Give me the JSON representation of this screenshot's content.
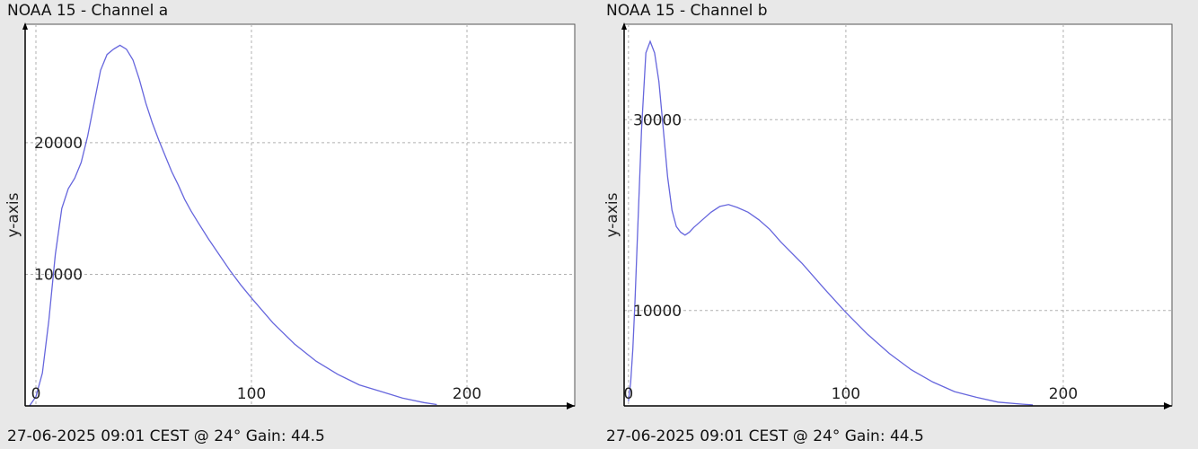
{
  "chart_data": [
    {
      "type": "line",
      "title": "NOAA 15 - Channel a",
      "footer": "27-06-2025 09:01 CEST @ 24° Gain: 44.5",
      "ylabel": "y-axis",
      "xlabel": "",
      "xlim": [
        -5,
        250
      ],
      "ylim": [
        0,
        29000
      ],
      "grid": true,
      "xticks": [
        0,
        100,
        200
      ],
      "yticks": [
        10000,
        20000
      ],
      "line_color": "#6666dd",
      "series": [
        {
          "x": [
            -3,
            0,
            3,
            6,
            9,
            12,
            15,
            18,
            21,
            24,
            27,
            30,
            33,
            36,
            39,
            42,
            45,
            48,
            51,
            54,
            57,
            60,
            63,
            66,
            69,
            72,
            75,
            80,
            85,
            90,
            95,
            100,
            110,
            120,
            130,
            140,
            150,
            160,
            170,
            180,
            186
          ],
          "values": [
            0,
            700,
            2500,
            6500,
            11500,
            15000,
            16500,
            17300,
            18500,
            20500,
            23000,
            25500,
            26700,
            27100,
            27400,
            27100,
            26300,
            24800,
            23000,
            21500,
            20200,
            19000,
            17800,
            16800,
            15700,
            14800,
            14000,
            12700,
            11500,
            10300,
            9200,
            8200,
            6300,
            4700,
            3400,
            2400,
            1600,
            1100,
            600,
            250,
            100
          ]
        }
      ]
    },
    {
      "type": "line",
      "title": "NOAA 15 - Channel b",
      "footer": "27-06-2025 09:01 CEST @ 24° Gain: 44.5",
      "ylabel": "y-axis",
      "xlabel": "",
      "xlim": [
        -2,
        250
      ],
      "ylim": [
        0,
        40000
      ],
      "grid": true,
      "xticks": [
        0,
        100,
        200
      ],
      "yticks": [
        10000,
        30000
      ],
      "line_color": "#6666dd",
      "series": [
        {
          "x": [
            0,
            1,
            2,
            3,
            4,
            6,
            8,
            10,
            12,
            14,
            16,
            18,
            20,
            22,
            24,
            26,
            28,
            30,
            34,
            38,
            42,
            46,
            50,
            55,
            60,
            65,
            70,
            80,
            90,
            100,
            110,
            120,
            130,
            140,
            150,
            160,
            170,
            180,
            186
          ],
          "values": [
            500,
            2500,
            6000,
            11000,
            17000,
            29000,
            37000,
            38200,
            37000,
            34000,
            29000,
            24000,
            20500,
            18800,
            18200,
            17900,
            18200,
            18700,
            19500,
            20300,
            20900,
            21100,
            20800,
            20300,
            19500,
            18500,
            17200,
            14900,
            12300,
            9800,
            7500,
            5500,
            3800,
            2500,
            1500,
            900,
            400,
            200,
            100
          ]
        }
      ]
    }
  ]
}
